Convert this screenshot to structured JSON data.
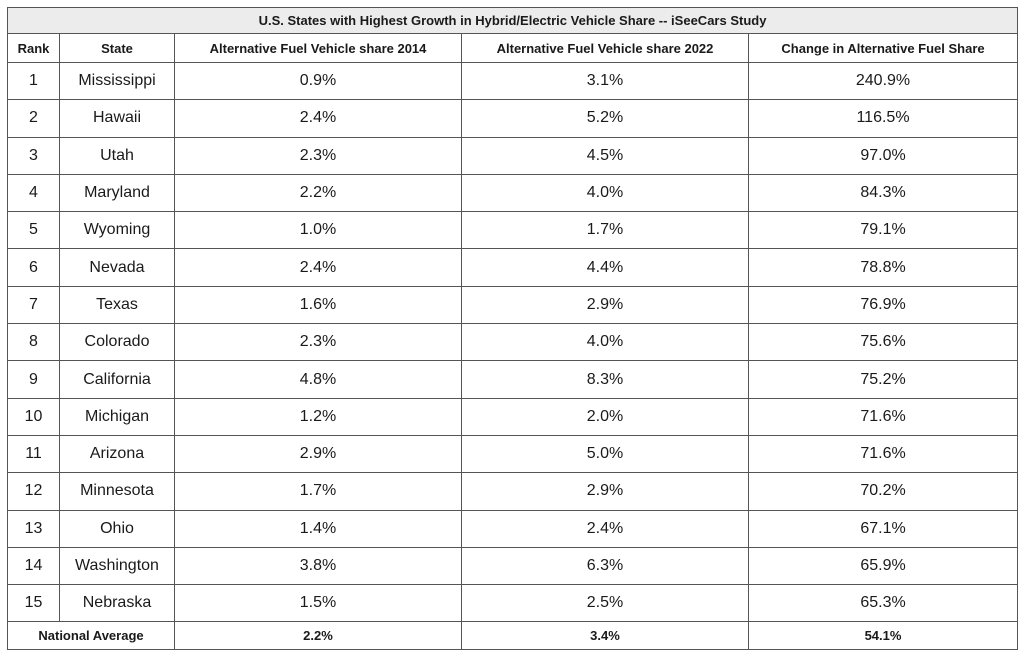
{
  "title": "U.S. States with Highest Growth in Hybrid/Electric Vehicle Share -- iSeeCars Study",
  "headers": {
    "rank": "Rank",
    "state": "State",
    "share2014": "Alternative Fuel Vehicle share 2014",
    "share2022": "Alternative Fuel Vehicle share 2022",
    "change": "Change in Alternative Fuel Share"
  },
  "rows": [
    {
      "rank": "1",
      "state": "Mississippi",
      "share2014": "0.9%",
      "share2022": "3.1%",
      "change": "240.9%"
    },
    {
      "rank": "2",
      "state": "Hawaii",
      "share2014": "2.4%",
      "share2022": "5.2%",
      "change": "116.5%"
    },
    {
      "rank": "3",
      "state": "Utah",
      "share2014": "2.3%",
      "share2022": "4.5%",
      "change": "97.0%"
    },
    {
      "rank": "4",
      "state": "Maryland",
      "share2014": "2.2%",
      "share2022": "4.0%",
      "change": "84.3%"
    },
    {
      "rank": "5",
      "state": "Wyoming",
      "share2014": "1.0%",
      "share2022": "1.7%",
      "change": "79.1%"
    },
    {
      "rank": "6",
      "state": "Nevada",
      "share2014": "2.4%",
      "share2022": "4.4%",
      "change": "78.8%"
    },
    {
      "rank": "7",
      "state": "Texas",
      "share2014": "1.6%",
      "share2022": "2.9%",
      "change": "76.9%"
    },
    {
      "rank": "8",
      "state": "Colorado",
      "share2014": "2.3%",
      "share2022": "4.0%",
      "change": "75.6%"
    },
    {
      "rank": "9",
      "state": "California",
      "share2014": "4.8%",
      "share2022": "8.3%",
      "change": "75.2%"
    },
    {
      "rank": "10",
      "state": "Michigan",
      "share2014": "1.2%",
      "share2022": "2.0%",
      "change": "71.6%"
    },
    {
      "rank": "11",
      "state": "Arizona",
      "share2014": "2.9%",
      "share2022": "5.0%",
      "change": "71.6%"
    },
    {
      "rank": "12",
      "state": "Minnesota",
      "share2014": "1.7%",
      "share2022": "2.9%",
      "change": "70.2%"
    },
    {
      "rank": "13",
      "state": "Ohio",
      "share2014": "1.4%",
      "share2022": "2.4%",
      "change": "67.1%"
    },
    {
      "rank": "14",
      "state": "Washington",
      "share2014": "3.8%",
      "share2022": "6.3%",
      "change": "65.9%"
    },
    {
      "rank": "15",
      "state": "Nebraska",
      "share2014": "1.5%",
      "share2022": "2.5%",
      "change": "65.3%"
    }
  ],
  "footer": {
    "label": "National Average",
    "share2014": "2.2%",
    "share2022": "3.4%",
    "change": "54.1%"
  },
  "colors": {
    "title_background": "#ececec",
    "border": "#555555",
    "text": "#1a1a1a"
  }
}
